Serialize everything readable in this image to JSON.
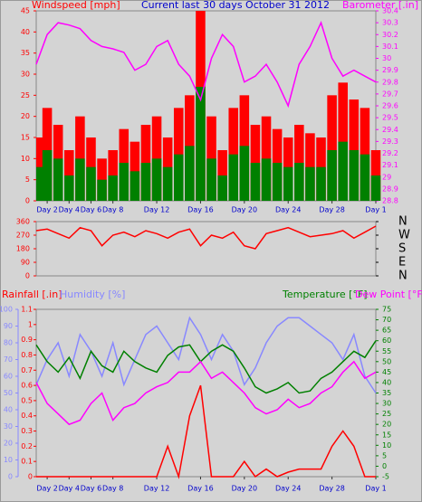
{
  "chart_data": [
    {
      "type": "bar",
      "title": "Current last 30 days October 31 2012",
      "title_color": "#0000cc",
      "ylabel": "Windspeed [mph]",
      "y2label": "Barometer [.in]",
      "x": [
        1,
        2,
        3,
        4,
        5,
        6,
        7,
        8,
        9,
        10,
        11,
        12,
        13,
        14,
        15,
        16,
        17,
        18,
        19,
        20,
        21,
        22,
        23,
        24,
        25,
        26,
        27,
        28,
        29,
        30,
        31,
        32
      ],
      "xlim": [
        1,
        32
      ],
      "xticks": [
        {
          "value": 2,
          "label": "Day 2"
        },
        {
          "value": 4,
          "label": "Day 4"
        },
        {
          "value": 6,
          "label": "Day 6"
        },
        {
          "value": 8,
          "label": "Day 8"
        },
        {
          "value": 12,
          "label": "Day 12"
        },
        {
          "value": 16,
          "label": "Day 16"
        },
        {
          "value": 20,
          "label": "Day 20"
        },
        {
          "value": 24,
          "label": "Day 24"
        },
        {
          "value": 28,
          "label": "Day 28"
        },
        {
          "value": 32,
          "label": "Day 1"
        }
      ],
      "ylim": [
        0,
        45
      ],
      "yticks": [
        0,
        5,
        10,
        15,
        20,
        25,
        30,
        35,
        40,
        45
      ],
      "y2lim": [
        28.8,
        30.4
      ],
      "y2ticks": [
        28.8,
        28.9,
        29,
        29.1,
        29.2,
        29.3,
        29.4,
        29.5,
        29.6,
        29.7,
        29.8,
        29.9,
        30,
        30.1,
        30.2,
        30.3,
        30.4
      ],
      "series": [
        {
          "type": "bar",
          "color": "#ff0000",
          "values": [
            15,
            22,
            18,
            12,
            20,
            15,
            10,
            12,
            17,
            14,
            18,
            20,
            15,
            22,
            25,
            45,
            20,
            12,
            22,
            25,
            18,
            20,
            17,
            15,
            18,
            16,
            15,
            25,
            28,
            24,
            22,
            12
          ]
        },
        {
          "type": "bar",
          "color": "#008000",
          "values": [
            8,
            12,
            10,
            6,
            10,
            8,
            5,
            6,
            9,
            7,
            9,
            10,
            8,
            11,
            13,
            27,
            10,
            6,
            11,
            13,
            9,
            10,
            9,
            8,
            9,
            8,
            8,
            12,
            14,
            12,
            11,
            6
          ]
        },
        {
          "type": "line",
          "axis": "y2",
          "color": "#ff00ff",
          "values": [
            29.95,
            30.2,
            30.3,
            30.28,
            30.25,
            30.15,
            30.1,
            30.08,
            30.05,
            29.9,
            29.95,
            30.1,
            30.15,
            29.95,
            29.85,
            29.65,
            30.0,
            30.2,
            30.1,
            29.8,
            29.85,
            29.95,
            29.8,
            29.6,
            29.95,
            30.1,
            30.3,
            30.0,
            29.85,
            29.9,
            29.85,
            29.8
          ]
        }
      ]
    },
    {
      "type": "line",
      "x": [
        1,
        2,
        3,
        4,
        5,
        6,
        7,
        8,
        9,
        10,
        11,
        12,
        13,
        14,
        15,
        16,
        17,
        18,
        19,
        20,
        21,
        22,
        23,
        24,
        25,
        26,
        27,
        28,
        29,
        30,
        31,
        32
      ],
      "xlim": [
        1,
        32
      ],
      "ylim": [
        0,
        360
      ],
      "yticks": [
        0,
        90,
        180,
        270,
        360
      ],
      "y2lim": [
        0,
        360
      ],
      "y2ticks": [
        {
          "value": 0,
          "label": "N"
        },
        {
          "value": 90,
          "label": "E"
        },
        {
          "value": 180,
          "label": "S"
        },
        {
          "value": 270,
          "label": "W"
        },
        {
          "value": 360,
          "label": "N"
        }
      ],
      "series": [
        {
          "type": "line",
          "color": "#ff0000",
          "values": [
            300,
            310,
            280,
            250,
            320,
            300,
            200,
            270,
            290,
            260,
            300,
            280,
            250,
            290,
            310,
            200,
            270,
            250,
            290,
            200,
            180,
            280,
            300,
            320,
            290,
            260,
            270,
            280,
            300,
            250,
            290,
            330
          ]
        }
      ]
    },
    {
      "type": "line",
      "x": [
        1,
        2,
        3,
        4,
        5,
        6,
        7,
        8,
        9,
        10,
        11,
        12,
        13,
        14,
        15,
        16,
        17,
        18,
        19,
        20,
        21,
        22,
        23,
        24,
        25,
        26,
        27,
        28,
        29,
        30,
        31,
        32
      ],
      "xlim": [
        1,
        32
      ],
      "xticks": [
        {
          "value": 2,
          "label": "Day 2"
        },
        {
          "value": 4,
          "label": "Day 4"
        },
        {
          "value": 6,
          "label": "Day 6"
        },
        {
          "value": 8,
          "label": "Day 8"
        },
        {
          "value": 12,
          "label": "Day 12"
        },
        {
          "value": 16,
          "label": "Day 16"
        },
        {
          "value": 20,
          "label": "Day 20"
        },
        {
          "value": 24,
          "label": "Day 24"
        },
        {
          "value": 28,
          "label": "Day 28"
        },
        {
          "value": 32,
          "label": "Day 1"
        }
      ],
      "ylim": [
        0,
        100
      ],
      "yticks": [
        0,
        10,
        20,
        30,
        40,
        50,
        60,
        70,
        80,
        90,
        100
      ],
      "y3lim": [
        0,
        1.1
      ],
      "y3ticks": [
        0,
        0.1,
        0.2,
        0.3,
        0.4,
        0.5,
        0.6,
        0.7,
        0.8,
        0.9,
        1,
        1.1
      ],
      "y2lim": [
        -5,
        75
      ],
      "y2ticks": [
        -5,
        0,
        5,
        10,
        15,
        20,
        25,
        30,
        35,
        40,
        45,
        50,
        55,
        60,
        65,
        70,
        75
      ],
      "series": [
        {
          "name": "Rainfall [.in]",
          "type": "line",
          "axis": "y3",
          "color": "#ff0000",
          "values": [
            0,
            0,
            0,
            0,
            0,
            0,
            0,
            0,
            0,
            0,
            0,
            0,
            0.2,
            0,
            0.4,
            0.6,
            0,
            0,
            0,
            0.1,
            0,
            0.05,
            0,
            0.03,
            0.05,
            0.05,
            0.05,
            0.2,
            0.3,
            0.2,
            0,
            0
          ]
        },
        {
          "name": "Humidity [%]",
          "type": "line",
          "color": "#8888ff",
          "values": [
            55,
            70,
            80,
            60,
            85,
            75,
            60,
            80,
            55,
            70,
            85,
            90,
            80,
            70,
            95,
            85,
            70,
            85,
            75,
            55,
            65,
            80,
            90,
            95,
            95,
            90,
            85,
            80,
            70,
            85,
            60,
            50
          ]
        },
        {
          "name": "Temperature [°F]",
          "type": "line",
          "axis": "y2",
          "color": "#008000",
          "values": [
            58,
            50,
            45,
            52,
            42,
            55,
            48,
            45,
            55,
            50,
            47,
            45,
            53,
            57,
            58,
            50,
            55,
            58,
            55,
            47,
            38,
            35,
            37,
            40,
            35,
            36,
            42,
            45,
            50,
            55,
            52,
            60
          ]
        },
        {
          "name": "Dew Point [°F]",
          "type": "line",
          "axis": "y2",
          "color": "#ff00ff",
          "values": [
            40,
            30,
            25,
            20,
            22,
            30,
            35,
            22,
            28,
            30,
            35,
            38,
            40,
            45,
            45,
            50,
            42,
            45,
            40,
            35,
            28,
            25,
            27,
            32,
            28,
            30,
            35,
            38,
            45,
            50,
            42,
            45
          ]
        }
      ]
    }
  ]
}
